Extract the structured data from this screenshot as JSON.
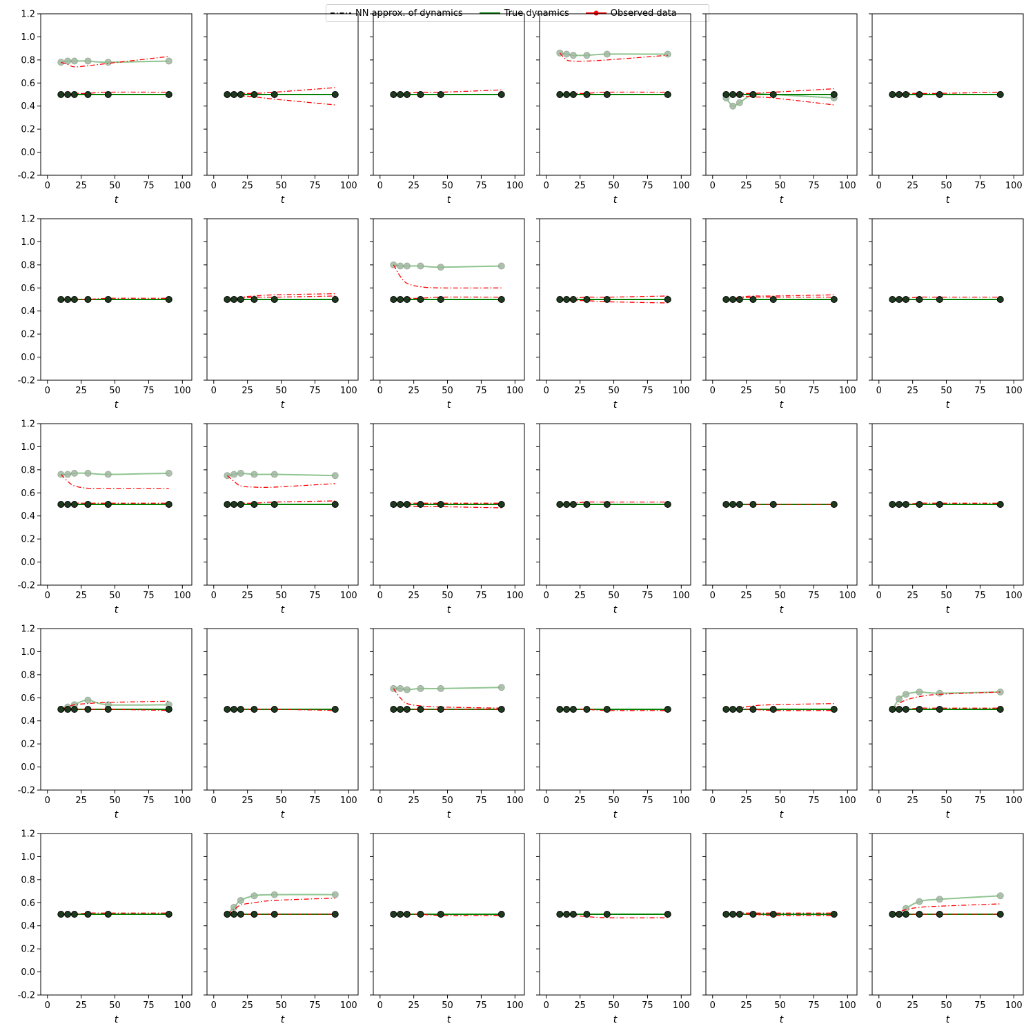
{
  "legend": {
    "nn_label": "NN approx. of dynamics",
    "true_label": "True dynamics",
    "obs_label": "Observed data"
  },
  "colors": {
    "nn": "#ff0000",
    "true": "#008000",
    "observed": "#ff0000",
    "upper_true": "#8fc48f",
    "marker_dark": "#1e3a1e",
    "marker_light": "#a0b8a0"
  },
  "chart_data": {
    "type": "line",
    "layout": "5x6 grid of subplots",
    "xlabel": "t",
    "xlim": [
      -5,
      107
    ],
    "ylim": [
      -0.2,
      1.2
    ],
    "xticks": [
      0,
      25,
      50,
      75,
      100
    ],
    "yticks": [
      -0.2,
      0.0,
      0.2,
      0.4,
      0.6,
      0.8,
      1.0,
      1.2
    ],
    "legend_position": "top-center",
    "obs_t": [
      10,
      15,
      20,
      30,
      45,
      90
    ],
    "panels": [
      {
        "xticks": [
          0,
          25,
          50,
          75,
          100
        ],
        "upper_true": [
          0.78,
          0.79,
          0.79,
          0.79,
          0.78,
          0.79
        ],
        "upper_nn": [
          0.78,
          0.76,
          0.74,
          0.75,
          0.77,
          0.83
        ],
        "nn_lower": [
          0.5,
          0.5,
          0.51,
          0.51,
          0.52,
          0.52
        ]
      },
      {
        "xticks": [
          0,
          25,
          50,
          75,
          100
        ],
        "upper_true": null,
        "upper_nn": null,
        "nn_lower": [
          0.5,
          0.5,
          0.49,
          0.48,
          0.46,
          0.41
        ],
        "nn_lower2": [
          0.5,
          0.5,
          0.51,
          0.51,
          0.52,
          0.56
        ]
      },
      {
        "xticks": [
          0,
          25,
          50,
          75,
          100
        ],
        "upper_true": null,
        "upper_nn": null,
        "nn_lower": [
          0.5,
          0.5,
          0.51,
          0.52,
          0.52,
          0.54
        ]
      },
      {
        "xticks": [
          0,
          25,
          50,
          75,
          100
        ],
        "upper_true": [
          0.86,
          0.85,
          0.84,
          0.84,
          0.85,
          0.85
        ],
        "upper_nn": [
          0.86,
          0.8,
          0.79,
          0.79,
          0.8,
          0.84
        ],
        "nn_lower": [
          0.5,
          0.5,
          0.51,
          0.51,
          0.52,
          0.52
        ]
      },
      {
        "xticks": [
          0,
          25,
          50,
          75,
          100
        ],
        "upper_true": [
          0.47,
          0.4,
          0.43,
          0.5,
          0.5,
          0.47
        ],
        "upper_nn": null,
        "nn_lower": [
          0.5,
          0.5,
          0.49,
          0.48,
          0.47,
          0.41
        ],
        "nn_lower2": [
          0.5,
          0.5,
          0.51,
          0.51,
          0.52,
          0.55
        ]
      },
      {
        "xticks": [
          0,
          25,
          50,
          75,
          100
        ],
        "upper_true": null,
        "upper_nn": null,
        "nn_lower": [
          0.5,
          0.5,
          0.51,
          0.51,
          0.51,
          0.52
        ]
      },
      {
        "xticks": [
          0,
          25,
          50,
          75,
          100
        ],
        "upper_true": null,
        "upper_nn": null,
        "nn_lower": [
          0.5,
          0.5,
          0.5,
          0.5,
          0.51,
          0.51
        ]
      },
      {
        "xticks": [
          0,
          25,
          50,
          75,
          100
        ],
        "upper_true": null,
        "upper_nn": null,
        "nn_lower": [
          0.5,
          0.5,
          0.52,
          0.53,
          0.54,
          0.55
        ],
        "nn_lower2": [
          0.5,
          0.5,
          0.51,
          0.52,
          0.52,
          0.53
        ]
      },
      {
        "xticks": [
          0,
          25,
          50,
          75,
          100
        ],
        "upper_true": [
          0.8,
          0.79,
          0.79,
          0.79,
          0.78,
          0.79
        ],
        "upper_nn": [
          0.8,
          0.7,
          0.64,
          0.61,
          0.6,
          0.6
        ],
        "nn_lower": [
          0.5,
          0.5,
          0.51,
          0.51,
          0.52,
          0.52
        ]
      },
      {
        "xticks": [
          0,
          25,
          50,
          75,
          100
        ],
        "upper_true": null,
        "upper_nn": null,
        "nn_lower": [
          0.5,
          0.5,
          0.49,
          0.49,
          0.48,
          0.47
        ],
        "nn_lower2": [
          0.5,
          0.5,
          0.51,
          0.52,
          0.52,
          0.53
        ]
      },
      {
        "xticks": [
          0,
          25,
          50,
          75,
          100
        ],
        "upper_true": null,
        "upper_nn": null,
        "nn_lower": [
          0.5,
          0.5,
          0.52,
          0.53,
          0.53,
          0.54
        ],
        "nn_lower2": [
          0.5,
          0.5,
          0.51,
          0.52,
          0.52,
          0.52
        ]
      },
      {
        "xticks": [
          0,
          25,
          50,
          75,
          100
        ],
        "upper_true": null,
        "upper_nn": null,
        "nn_lower": [
          0.5,
          0.5,
          0.51,
          0.52,
          0.52,
          0.52
        ]
      },
      {
        "xticks": [
          0,
          25,
          50,
          75,
          100
        ],
        "upper_true": [
          0.76,
          0.76,
          0.77,
          0.77,
          0.76,
          0.77
        ],
        "upper_nn": [
          0.76,
          0.7,
          0.66,
          0.64,
          0.64,
          0.64
        ],
        "nn_lower": [
          0.5,
          0.5,
          0.51,
          0.51,
          0.51,
          0.51
        ]
      },
      {
        "xticks": [
          0,
          25,
          50,
          75,
          100
        ],
        "upper_true": [
          0.75,
          0.76,
          0.77,
          0.76,
          0.76,
          0.75
        ],
        "upper_nn": [
          0.75,
          0.7,
          0.66,
          0.65,
          0.65,
          0.68
        ],
        "nn_lower": [
          0.5,
          0.5,
          0.51,
          0.51,
          0.52,
          0.53
        ]
      },
      {
        "xticks": [
          0,
          25,
          50,
          75,
          100
        ],
        "upper_true": null,
        "upper_nn": null,
        "nn_lower": [
          0.5,
          0.5,
          0.49,
          0.48,
          0.48,
          0.47
        ],
        "nn_lower2": [
          0.5,
          0.5,
          0.51,
          0.51,
          0.51,
          0.51
        ]
      },
      {
        "xticks": [
          0,
          25,
          50,
          75,
          100
        ],
        "upper_true": null,
        "upper_nn": null,
        "nn_lower": [
          0.5,
          0.5,
          0.51,
          0.52,
          0.52,
          0.52
        ]
      },
      {
        "xticks": [
          0,
          25,
          50,
          75,
          100
        ],
        "upper_true": null,
        "upper_nn": null,
        "nn_lower": [
          0.5,
          0.5,
          0.5,
          0.5,
          0.5,
          0.5
        ]
      },
      {
        "xticks": [
          0,
          25,
          50,
          75,
          100
        ],
        "upper_true": null,
        "upper_nn": null,
        "nn_lower": [
          0.5,
          0.5,
          0.5,
          0.51,
          0.51,
          0.51
        ]
      },
      {
        "xticks": [
          0,
          25,
          50,
          75,
          100
        ],
        "upper_true": [
          0.5,
          0.52,
          0.54,
          0.58,
          0.54,
          0.54
        ],
        "upper_nn": [
          0.5,
          0.52,
          0.54,
          0.55,
          0.56,
          0.57
        ],
        "nn_lower": [
          0.5,
          0.5,
          0.5,
          0.5,
          0.5,
          0.49
        ]
      },
      {
        "xticks": [
          0,
          25,
          50,
          75,
          100
        ],
        "upper_true": null,
        "upper_nn": null,
        "nn_lower": [
          0.5,
          0.5,
          0.5,
          0.5,
          0.5,
          0.49
        ]
      },
      {
        "xticks": [
          0,
          25,
          50,
          75,
          100
        ],
        "upper_true": [
          0.68,
          0.68,
          0.67,
          0.68,
          0.68,
          0.69
        ],
        "upper_nn": [
          0.68,
          0.6,
          0.55,
          0.53,
          0.52,
          0.51
        ],
        "nn_lower": [
          0.5,
          0.5,
          0.5,
          0.5,
          0.5,
          0.5
        ]
      },
      {
        "xticks": [
          0,
          25,
          50,
          75,
          100
        ],
        "upper_true": null,
        "upper_nn": null,
        "nn_lower": [
          0.5,
          0.5,
          0.5,
          0.5,
          0.49,
          0.49
        ]
      },
      {
        "xticks": [
          0,
          25,
          50,
          75,
          100
        ],
        "upper_true": null,
        "upper_nn": null,
        "nn_lower": [
          0.5,
          0.5,
          0.51,
          0.53,
          0.54,
          0.55
        ],
        "nn_lower2": [
          0.5,
          0.5,
          0.5,
          0.5,
          0.49,
          0.49
        ]
      },
      {
        "xticks": [
          0,
          25,
          50,
          75,
          100
        ],
        "upper_true": [
          0.5,
          0.59,
          0.63,
          0.65,
          0.64,
          0.65
        ],
        "upper_nn": [
          0.5,
          0.55,
          0.58,
          0.61,
          0.63,
          0.65
        ],
        "nn_lower": [
          0.5,
          0.5,
          0.5,
          0.51,
          0.51,
          0.51
        ]
      },
      {
        "xticks": [
          0,
          25,
          50,
          75,
          100
        ],
        "upper_true": null,
        "upper_nn": null,
        "nn_lower": [
          0.5,
          0.5,
          0.5,
          0.51,
          0.51,
          0.51
        ]
      },
      {
        "xticks": [
          0,
          25,
          50,
          75,
          100
        ],
        "upper_true": [
          0.5,
          0.56,
          0.62,
          0.66,
          0.67,
          0.67
        ],
        "upper_nn": [
          0.5,
          0.54,
          0.58,
          0.6,
          0.62,
          0.64
        ],
        "nn_lower": [
          0.5,
          0.5,
          0.5,
          0.5,
          0.5,
          0.5
        ]
      },
      {
        "xticks": [
          0,
          25,
          50,
          75,
          100
        ],
        "upper_true": null,
        "upper_nn": null,
        "nn_lower": [
          0.5,
          0.5,
          0.5,
          0.5,
          0.49,
          0.49
        ]
      },
      {
        "xticks": [
          0,
          25,
          50,
          75,
          100
        ],
        "upper_true": null,
        "upper_nn": null,
        "nn_lower": [
          0.5,
          0.5,
          0.49,
          0.48,
          0.47,
          0.47
        ]
      },
      {
        "xticks": [
          0,
          25,
          50,
          75,
          100
        ],
        "upper_true": null,
        "upper_nn": null,
        "nn_lower": [
          0.5,
          0.5,
          0.5,
          0.5,
          0.49,
          0.49
        ],
        "nn_lower2": [
          0.5,
          0.5,
          0.51,
          0.51,
          0.51,
          0.51
        ]
      },
      {
        "xticks": [
          0,
          25,
          50,
          75,
          100
        ],
        "upper_true": [
          0.5,
          0.5,
          0.55,
          0.61,
          0.63,
          0.66
        ],
        "upper_nn": [
          0.5,
          0.52,
          0.54,
          0.56,
          0.57,
          0.59
        ],
        "nn_lower": [
          0.5,
          0.5,
          0.5,
          0.5,
          0.5,
          0.5
        ]
      }
    ]
  }
}
